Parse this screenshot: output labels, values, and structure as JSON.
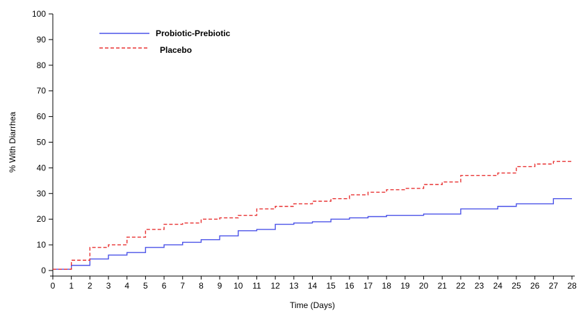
{
  "chart_data": {
    "type": "line",
    "title": "",
    "xlabel": "Time (Days)",
    "ylabel": "% With Diarrhea",
    "xlim": [
      0,
      28
    ],
    "ylim": [
      0,
      100
    ],
    "x_ticks": [
      0,
      1,
      2,
      3,
      4,
      5,
      6,
      7,
      8,
      9,
      10,
      11,
      12,
      13,
      14,
      15,
      16,
      17,
      18,
      19,
      20,
      21,
      22,
      23,
      24,
      25,
      26,
      27,
      28
    ],
    "y_ticks": [
      0,
      10,
      20,
      30,
      40,
      50,
      60,
      70,
      80,
      90,
      100
    ],
    "grid": false,
    "legend": "top-left",
    "step": true,
    "series": [
      {
        "name": "Probiotic-Prebiotic",
        "color": "#4a52e8",
        "dash": "solid",
        "x": [
          0,
          1,
          2,
          3,
          4,
          5,
          6,
          7,
          8,
          9,
          10,
          11,
          12,
          13,
          14,
          15,
          16,
          17,
          18,
          20,
          22,
          24,
          25,
          27,
          28
        ],
        "y": [
          0.5,
          2,
          4.5,
          6,
          7,
          9,
          10,
          11,
          12,
          13.5,
          15.5,
          16,
          18,
          18.5,
          19,
          20,
          20.5,
          21,
          21.5,
          22,
          24,
          25,
          26,
          28,
          28
        ]
      },
      {
        "name": "Placebo",
        "color": "#e83030",
        "dash": "dashed",
        "x": [
          0,
          1,
          2,
          3,
          4,
          5,
          6,
          7,
          8,
          9,
          10,
          11,
          12,
          13,
          14,
          15,
          16,
          17,
          18,
          19,
          20,
          21,
          22,
          24,
          25,
          26,
          27,
          28
        ],
        "y": [
          0.5,
          4,
          9,
          10,
          13,
          16,
          18,
          18.5,
          20,
          20.5,
          21.5,
          24,
          25,
          26,
          27,
          28,
          29.5,
          30.5,
          31.5,
          32,
          33.5,
          34.5,
          37,
          38,
          40.5,
          41.5,
          42.5,
          42.5
        ]
      }
    ]
  }
}
